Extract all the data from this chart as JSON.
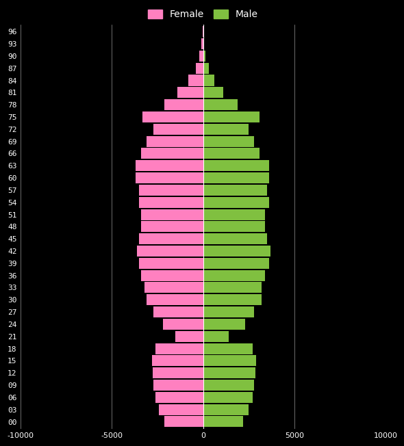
{
  "background_color": "#000000",
  "female_color": "#FF80C0",
  "male_color": "#80C040",
  "ages": [
    0,
    3,
    6,
    9,
    12,
    15,
    18,
    21,
    24,
    27,
    30,
    33,
    36,
    39,
    42,
    45,
    48,
    51,
    54,
    57,
    60,
    63,
    66,
    69,
    72,
    75,
    78,
    81,
    84,
    87,
    90,
    93,
    96
  ],
  "female_values": [
    2100,
    2400,
    2600,
    2700,
    2750,
    2800,
    2600,
    1500,
    2200,
    2700,
    3100,
    3200,
    3400,
    3500,
    3600,
    3500,
    3400,
    3400,
    3500,
    3500,
    3700,
    3700,
    3400,
    3100,
    2700,
    3300,
    2100,
    1400,
    800,
    400,
    200,
    80,
    20
  ],
  "male_values": [
    2200,
    2500,
    2700,
    2800,
    2850,
    2900,
    2700,
    1400,
    2300,
    2800,
    3200,
    3200,
    3400,
    3600,
    3700,
    3500,
    3400,
    3400,
    3600,
    3500,
    3600,
    3600,
    3100,
    2800,
    2500,
    3100,
    1900,
    1100,
    600,
    300,
    130,
    50,
    10
  ],
  "xlim": [
    -10000,
    10000
  ],
  "xticks": [
    -10000,
    -5000,
    0,
    5000,
    10000
  ],
  "tick_color": "#ffffff",
  "grid_color": "#ffffff",
  "bar_height": 2.7,
  "legend_female": "Female",
  "legend_male": "Male"
}
